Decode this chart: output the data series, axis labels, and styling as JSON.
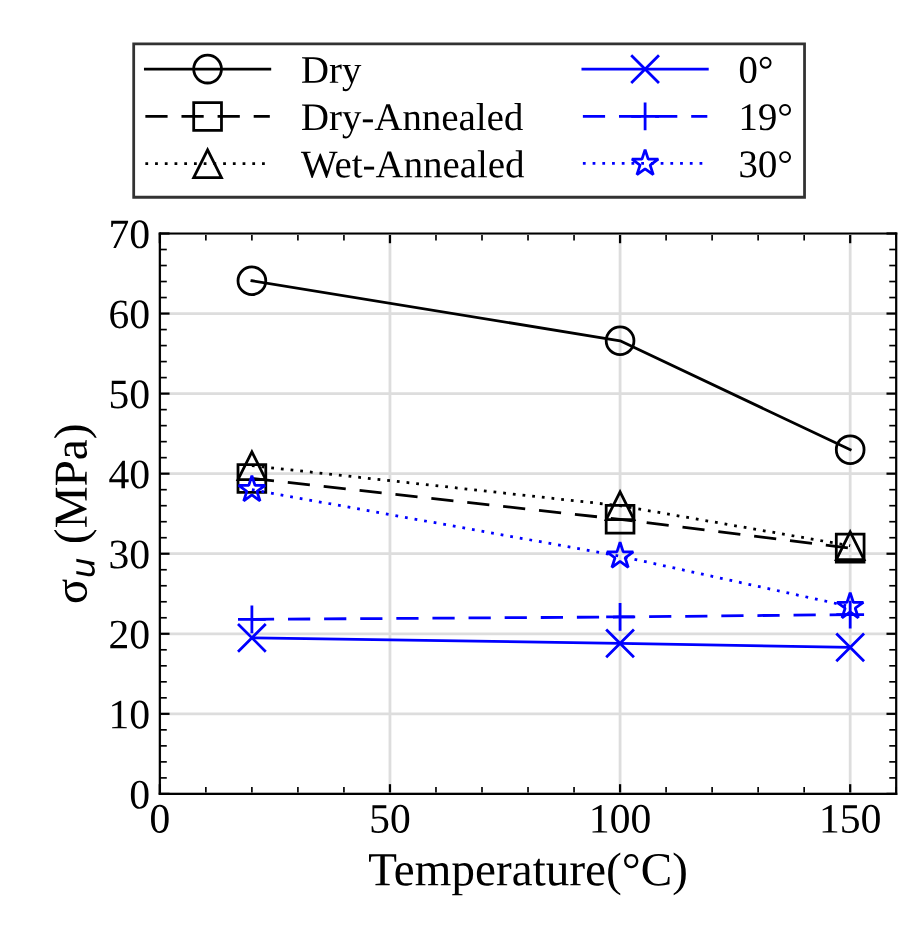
{
  "chart_data": {
    "type": "line",
    "xlabel": "Temperature(°C)",
    "ylabel": "σ$_{u}$ (MPa)",
    "x": [
      20,
      100,
      150
    ],
    "xlim": [
      0,
      160
    ],
    "xticks": [
      0,
      50,
      100,
      150
    ],
    "ylim": [
      0,
      70
    ],
    "yticks": [
      0,
      10,
      20,
      30,
      40,
      50,
      60,
      70
    ],
    "grid": true,
    "legend": "top",
    "series": [
      {
        "name": "Dry",
        "color": "#000000",
        "values": [
          64.1,
          56.6,
          43
        ],
        "marker": "circle",
        "line_style": "solid"
      },
      {
        "name": "Dry-Annealed",
        "color": "#000000",
        "values": [
          39.4,
          34.3,
          30.7
        ],
        "marker": "square",
        "line_style": "dashed"
      },
      {
        "name": "Wet-Annealed",
        "color": "#000000",
        "values": [
          41,
          36,
          31
        ],
        "marker": "triangle",
        "line_style": "dotted"
      },
      {
        "name": "0°",
        "color": "#0000ff",
        "values": [
          19.5,
          18.8,
          18.3
        ],
        "marker": "cross",
        "line_style": "solid"
      },
      {
        "name": "19°",
        "color": "#0000ff",
        "values": [
          21.8,
          22.1,
          22.4
        ],
        "marker": "plus",
        "line_style": "dashed"
      },
      {
        "name": "30°",
        "color": "#0000ff",
        "values": [
          38,
          29.7,
          23.4
        ],
        "marker": "star",
        "line_style": "dotted"
      }
    ]
  }
}
